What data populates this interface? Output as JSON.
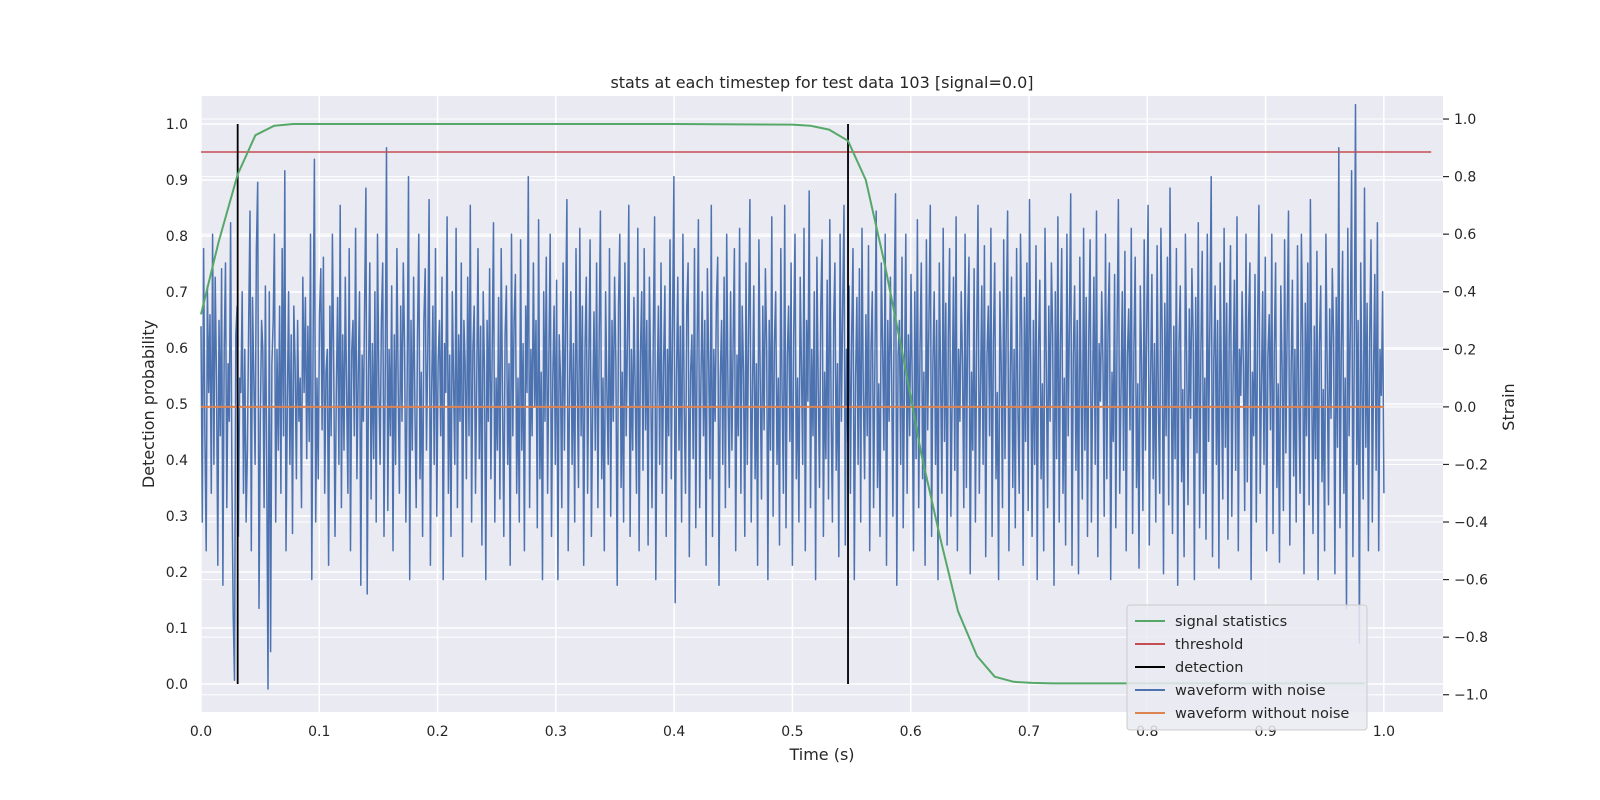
{
  "chart_data": {
    "type": "line",
    "title": "stats at each timestep for test data 103 [signal=0.0]",
    "xlabel": "Time (s)",
    "ylabel_left": "Detection probability",
    "ylabel_right": "Strain",
    "xlim": [
      0.0,
      1.05
    ],
    "ylim_left": [
      -0.05,
      1.05
    ],
    "ylim_right": [
      -1.06,
      1.08
    ],
    "x_ticks": [
      "0.0",
      "0.1",
      "0.2",
      "0.3",
      "0.4",
      "0.5",
      "0.6",
      "0.7",
      "0.8",
      "0.9",
      "1.0"
    ],
    "y_ticks_left": [
      "0.0",
      "0.1",
      "0.2",
      "0.3",
      "0.4",
      "0.5",
      "0.6",
      "0.7",
      "0.8",
      "0.9",
      "1.0"
    ],
    "y_ticks_right": [
      "−1.0",
      "−0.8",
      "−0.6",
      "−0.4",
      "−0.2",
      "0.0",
      "0.2",
      "0.4",
      "0.6",
      "0.8",
      "1.0"
    ],
    "grid": true,
    "legend_position": "lower-right",
    "colors": {
      "background": "#eaeaf2",
      "grid": "#ffffff",
      "signal_statistics": "#55a868",
      "threshold": "#c44e52",
      "detection": "#000000",
      "waveform_with_noise": "#4c72b0",
      "waveform_without_noise": "#dd8452"
    },
    "series": [
      {
        "name": "signal statistics",
        "axis": "left",
        "x": [
          0.0,
          0.015,
          0.031,
          0.046,
          0.062,
          0.078,
          0.1,
          0.2,
          0.3,
          0.4,
          0.5,
          0.515,
          0.531,
          0.547,
          0.562,
          0.578,
          0.594,
          0.609,
          0.625,
          0.64,
          0.656,
          0.671,
          0.687,
          0.703,
          0.72,
          0.75,
          0.8,
          0.9,
          0.984
        ],
        "values": [
          0.66,
          0.79,
          0.91,
          0.98,
          0.997,
          1.0,
          1.0,
          1.0,
          1.0,
          1.0,
          0.999,
          0.997,
          0.99,
          0.97,
          0.9,
          0.75,
          0.58,
          0.41,
          0.26,
          0.13,
          0.05,
          0.013,
          0.004,
          0.002,
          0.001,
          0.001,
          0.001,
          0.001,
          0.001
        ]
      },
      {
        "name": "threshold",
        "axis": "left",
        "x": [
          0.0,
          1.04
        ],
        "values": [
          0.95,
          0.95
        ]
      },
      {
        "name": "detection",
        "axis": "left",
        "segments": [
          {
            "x": 0.031,
            "y": [
              0.0,
              1.0
            ]
          },
          {
            "x": 0.547,
            "y": [
              0.0,
              1.0
            ]
          }
        ]
      },
      {
        "name": "waveform with noise",
        "axis": "right",
        "x_start": 0.0,
        "x_end": 1.0,
        "values": [
          0.28,
          -0.4,
          0.55,
          -0.1,
          -0.5,
          0.42,
          0.05,
          0.32,
          -0.3,
          0.6,
          -0.2,
          0.45,
          0.1,
          -0.55,
          0.3,
          -0.1,
          0.48,
          -0.62,
          0.2,
          0.5,
          -0.35,
          0.15,
          -0.05,
          0.64,
          -0.25,
          -0.72,
          -0.95,
          0.25,
          0.35,
          -0.45,
          0.1,
          0.05,
          0.4,
          -0.3,
          0.2,
          -0.4,
          -0.15,
          0.3,
          0.68,
          -0.5,
          0.38,
          0.1,
          -0.2,
          0.55,
          0.78,
          -0.7,
          -0.05,
          0.3,
          0.2,
          -0.35,
          0.42,
          -0.2,
          -0.98,
          0.4,
          -0.85,
          0.15,
          0.3,
          0.6,
          -0.4,
          0.2,
          -0.15,
          0.35,
          -0.3,
          0.55,
          -0.1,
          0.82,
          -0.5,
          0.0,
          0.4,
          -0.2,
          0.25,
          -0.44,
          0.35,
          0.15,
          -0.25,
          0.3,
          -0.05,
          0.1,
          -0.35,
          0.45,
          0.05,
          0.38,
          -0.18,
          0.28,
          -0.12,
          0.6,
          -0.6,
          0.22,
          0.86,
          -0.4,
          0.1,
          -0.25,
          0.32,
          0.48,
          -0.08,
          0.52,
          -0.3,
          0.12,
          0.2,
          -0.55,
          0.35,
          -0.1,
          0.6,
          0.15,
          -0.45,
          0.05,
          0.38,
          -0.2,
          0.7,
          -0.35,
          0.25,
          -0.15,
          0.45,
          0.05,
          -0.3,
          0.55,
          -0.5,
          0.2,
          0.3,
          -0.1,
          0.62,
          -0.25,
          0.1,
          0.4,
          -0.62,
          0.18,
          -0.05,
          0.35,
          0.76,
          -0.65,
          0.1,
          0.5,
          -0.32,
          0.22,
          -0.18,
          0.4,
          -0.4,
          0.6,
          0.08,
          -0.2,
          0.3,
          0.5,
          -0.45,
          0.15,
          0.9,
          -0.36,
          0.2,
          -0.1,
          0.42,
          -0.5,
          0.25,
          -0.2,
          0.55,
          0.1,
          -0.3,
          0.35,
          -0.05,
          0.5,
          0.2,
          -0.4,
          0.1,
          0.8,
          -0.6,
          0.3,
          -0.15,
          0.45,
          0.0,
          -0.35,
          0.25,
          0.6,
          -0.25,
          0.12,
          -0.45,
          0.3,
          0.48,
          -0.15,
          0.2,
          0.72,
          -0.55,
          0.05,
          0.35,
          -0.2,
          0.55,
          -0.38,
          0.15,
          0.3,
          -0.1,
          0.45,
          -0.6,
          0.22,
          0.05,
          0.66,
          -0.3,
          0.18,
          -0.45,
          0.4,
          0.1,
          -0.2,
          0.62,
          -0.35,
          0.25,
          -0.05,
          0.5,
          -0.52,
          0.3,
          0.15,
          -0.25,
          0.45,
          -0.1,
          0.7,
          -0.4,
          0.2,
          0.35,
          -0.3,
          0.08,
          0.55,
          -0.18,
          0.28,
          -0.48,
          0.4,
          0.12,
          -0.6,
          0.3,
          -0.05,
          0.48,
          -0.25,
          0.2,
          0.64,
          -0.4,
          0.1,
          -0.15,
          0.38,
          -0.32,
          0.55,
          0.05,
          -0.45,
          0.25,
          0.42,
          -0.2,
          0.15,
          -0.55,
          0.6,
          -0.1,
          0.3,
          0.46,
          -0.3,
          0.1,
          -0.4,
          0.58,
          -0.15,
          0.22,
          -0.5,
          0.35,
          0.05,
          0.8,
          -0.35,
          0.2,
          -0.1,
          0.5,
          0.0,
          0.3,
          -0.42,
          0.65,
          -0.25,
          0.12,
          -0.6,
          0.4,
          -0.05,
          0.52,
          -0.3,
          0.18,
          0.6,
          -0.45,
          0.1,
          0.35,
          -0.2,
          0.44,
          -0.6,
          0.25,
          0.1,
          -0.35,
          0.5,
          -0.15,
          0.3,
          0.72,
          -0.5,
          0.05,
          0.4,
          -0.2,
          0.22,
          -0.4,
          0.55,
          0.1,
          -0.28,
          0.62,
          -0.1,
          0.35,
          -0.55,
          0.2,
          0.45,
          -0.3,
          0.15,
          0.58,
          -0.45,
          0.0,
          0.33,
          -0.15,
          0.5,
          -0.35,
          0.25,
          0.68,
          -0.25,
          0.1,
          -0.5,
          0.4,
          0.05,
          -0.2,
          0.55,
          -0.38,
          0.3,
          -0.05,
          0.45,
          0.15,
          -0.62,
          0.35,
          0.6,
          -0.28,
          0.12,
          -0.4,
          0.5,
          -0.1,
          0.25,
          0.7,
          -0.45,
          0.2,
          -0.15,
          0.38,
          0.05,
          -0.3,
          0.62,
          -0.5,
          0.18,
          0.4,
          -0.22,
          0.55,
          -0.08,
          0.3,
          -0.48,
          0.45,
          0.1,
          -0.35,
          0.25,
          0.66,
          -0.6,
          0.05,
          0.35,
          -0.2,
          0.5,
          -0.3,
          0.15,
          0.42,
          -0.45,
          0.2,
          -0.1,
          0.58,
          -0.25,
          0.3,
          0.8,
          -0.68,
          0.1,
          0.45,
          -0.15,
          0.28,
          -0.4,
          0.6,
          0.0,
          -0.3,
          0.35,
          0.5,
          -0.52,
          0.12,
          0.25,
          -0.18,
          0.55,
          -0.42,
          0.2,
          0.65,
          -0.35,
          0.08,
          0.4,
          -0.1,
          0.3,
          -0.55,
          0.48,
          0.15,
          -0.25,
          0.7,
          -0.45,
          0.2,
          -0.05,
          0.36,
          0.52,
          -0.62,
          0.1,
          0.3,
          -0.2,
          0.45,
          -0.35,
          0.6,
          0.05,
          -0.28,
          0.4,
          -0.15,
          0.25,
          0.55,
          -0.5,
          0.18,
          -0.1,
          0.62,
          -0.3,
          0.35,
          0.12,
          -0.45,
          0.5,
          -0.2,
          0.28,
          0.72,
          -0.4,
          0.05,
          0.42,
          -0.25,
          0.15,
          -0.55,
          0.58,
          0.1,
          -0.32,
          0.35,
          -0.08,
          0.48,
          0.2,
          -0.6,
          0.3,
          -0.15,
          0.66,
          -0.38,
          0.22,
          0.4,
          -0.2,
          0.1,
          -0.48,
          0.55,
          0.05,
          -0.3,
          0.7,
          -0.42,
          0.18,
          0.35,
          -0.12,
          0.5,
          -0.55,
          0.25,
          0.6,
          -0.25,
          0.1,
          -0.4,
          0.45,
          0.15,
          -0.2,
          0.62,
          -0.5,
          0.3,
          0.02,
          0.75,
          -0.35,
          0.2,
          -0.1,
          0.4,
          -0.6,
          0.52,
          0.08,
          -0.28,
          0.35,
          0.58,
          -0.45,
          0.12,
          -0.18,
          0.44,
          -0.32,
          0.65,
          0.0,
          -0.4,
          0.3,
          0.5,
          -0.22,
          0.15,
          -0.52,
          0.6,
          -0.05,
          0.35,
          0.7,
          -0.48,
          0.2,
          -0.12,
          0.42,
          -0.3,
          0.25,
          0.55,
          -0.6,
          0.1,
          0.38,
          -0.2,
          0.48,
          -0.4,
          0.62,
          0.05,
          -0.25,
          0.32,
          -0.1,
          0.56,
          -0.5,
          0.2,
          0.4,
          -0.35,
          0.15,
          0.68,
          -0.28,
          0.08,
          -0.45,
          0.5,
          0.22,
          -0.15,
          0.6,
          -0.55,
          0.3,
          -0.05,
          0.45,
          0.12,
          -0.38,
          0.36,
          0.74,
          -0.62,
          0.18,
          0.3,
          -0.2,
          0.52,
          -0.42,
          0.1,
          0.6,
          -0.3,
          0.25,
          -0.1,
          0.46,
          0.05,
          -0.5,
          0.4,
          -0.18,
          0.65,
          -0.35,
          0.2,
          0.5,
          -0.25,
          0.12,
          -0.55,
          0.58,
          -0.08,
          0.32,
          0.7,
          -0.45,
          0.15,
          0.4,
          -0.2,
          0.3,
          -0.6,
          0.5,
          0.1,
          -0.3,
          0.62,
          -0.12,
          0.36,
          -0.48,
          0.25,
          0.55,
          -0.38,
          0.05,
          0.45,
          -0.22,
          0.66,
          -0.5,
          0.2,
          -0.05,
          0.4,
          0.15,
          -0.35,
          0.6,
          -0.28,
          0.3,
          0.52,
          -0.58,
          0.12,
          -0.15,
          0.48,
          -0.4,
          0.25,
          0.7,
          -0.3,
          0.08,
          0.42,
          -0.2,
          0.56,
          -0.52,
          0.18,
          0.35,
          -0.1,
          0.62,
          -0.45,
          0.22,
          0.5,
          -0.25,
          0.05,
          -0.6,
          0.4,
          0.15,
          -0.35,
          0.58,
          -0.18,
          0.3,
          0.68,
          -0.5,
          0.1,
          0.45,
          -0.28,
          0.2,
          -0.42,
          0.55,
          0.0,
          -0.3,
          0.6,
          0.25,
          -0.55,
          0.38,
          -0.12,
          0.5,
          -0.36,
          0.72,
          0.12,
          -0.45,
          0.3,
          -0.2,
          0.56,
          -0.6,
          0.2,
          0.44,
          -0.25,
          0.08,
          -0.5,
          0.62,
          0.15,
          -0.35,
          0.35,
          -0.05,
          0.5,
          0.25,
          -0.62,
          0.4,
          -0.18,
          0.66,
          -0.4,
          0.2,
          0.55,
          -0.3,
          0.1,
          -0.48,
          0.6,
          -0.1,
          0.32,
          0.74,
          -0.55,
          0.18,
          0.42,
          -0.22,
          0.3,
          -0.58,
          0.52,
          0.05,
          -0.32,
          0.62,
          -0.15,
          0.38,
          -0.45,
          0.25,
          0.58,
          -0.4,
          0.1,
          0.45,
          -0.2,
          0.68,
          -0.52,
          0.22,
          0.02,
          0.4,
          0.15,
          -0.38,
          0.6,
          -0.25,
          0.3,
          0.5,
          -0.6,
          0.12,
          -0.12,
          0.46,
          -0.42,
          0.28,
          0.72,
          -0.3,
          0.05,
          0.4,
          -0.22,
          0.54,
          -0.5,
          0.18,
          0.34,
          -0.08,
          0.62,
          -0.44,
          0.2,
          0.52,
          -0.28,
          0.08,
          -0.56,
          0.42,
          0.15,
          -0.36,
          0.58,
          -0.15,
          0.3,
          0.7,
          -0.48,
          0.1,
          0.46,
          -0.25,
          0.22,
          -0.4,
          0.56,
          0.0,
          -0.3,
          0.62,
          0.25,
          -0.58,
          0.36,
          -0.1,
          0.52,
          -0.34,
          0.76,
          0.1,
          -0.44,
          0.28,
          -0.18,
          0.55,
          -0.62,
          0.22,
          0.42,
          -0.26,
          0.06,
          -0.52,
          0.6,
          0.16,
          -0.34,
          0.34,
          -0.04,
          0.48,
          0.24,
          -0.6,
          0.38,
          -0.16,
          0.64,
          -0.42,
          0.2,
          0.54,
          -0.3,
          0.1,
          -0.46,
          0.6,
          -0.12,
          0.3,
          0.8,
          -0.52,
          0.16,
          0.42,
          -0.2,
          0.3,
          -0.56,
          0.5,
          0.04,
          -0.32,
          0.62,
          -0.14,
          0.36,
          -0.46,
          0.24,
          0.56,
          -0.38,
          0.1,
          0.44,
          -0.22,
          0.66,
          -0.5,
          0.2,
          0.04,
          0.4,
          0.14,
          -0.36,
          0.6,
          -0.26,
          0.3,
          0.5,
          -0.6,
          0.12,
          -0.1,
          0.46,
          -0.4,
          0.28,
          0.7,
          -0.3,
          0.06,
          0.4,
          -0.2,
          0.52,
          -0.5,
          0.18,
          0.32,
          -0.08,
          0.6,
          -0.44,
          0.2,
          0.5,
          -0.28,
          0.08,
          -0.54,
          0.42,
          0.14,
          -0.36,
          0.58,
          -0.16,
          0.3,
          0.68,
          -0.48,
          0.12,
          0.44,
          -0.24,
          0.2,
          -0.4,
          0.56,
          0.02,
          -0.3,
          0.6,
          0.24,
          -0.58,
          0.36,
          -0.1,
          0.5,
          -0.34,
          0.72,
          0.1,
          -0.44,
          0.28,
          -0.18,
          0.54,
          -0.6,
          0.22,
          0.42,
          -0.26,
          0.06,
          -0.5,
          0.6,
          0.14,
          -0.34,
          0.34,
          -0.04,
          0.48,
          0.24,
          -0.58,
          0.38,
          -0.14,
          0.9,
          -0.42,
          0.2,
          0.54,
          -0.3,
          0.1,
          -0.7,
          0.62,
          -0.1,
          0.3,
          0.82,
          -0.52,
          0.16,
          1.05,
          -0.2,
          0.3,
          -0.82,
          0.5,
          0.04,
          -0.32,
          0.76,
          -0.14,
          0.36,
          -0.5,
          0.24,
          0.58,
          -0.4,
          0.1,
          0.46,
          -0.22,
          0.64,
          -0.5,
          0.2,
          0.04,
          0.4,
          -0.3
        ],
        "note_values_count_drawn": true
      },
      {
        "name": "waveform without noise",
        "axis": "right",
        "x": [
          0.0,
          1.0
        ],
        "values": [
          0.0,
          0.0
        ]
      }
    ]
  }
}
